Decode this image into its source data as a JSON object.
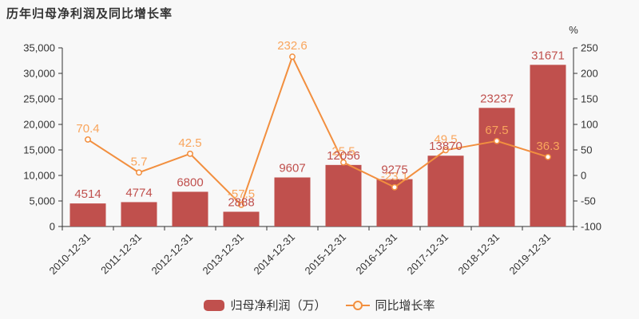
{
  "chart_data": {
    "type": "bar+line",
    "title": "历年归母净利润及同比增长率",
    "categories": [
      "2010-12-31",
      "2011-12-31",
      "2012-12-31",
      "2013-12-31",
      "2014-12-31",
      "2015-12-31",
      "2016-12-31",
      "2017-12-31",
      "2018-12-31",
      "2019-12-31"
    ],
    "series": [
      {
        "name": "归母净利润（万）",
        "type": "bar",
        "axis": "left",
        "color": "#c0504d",
        "label_color": "#c0504d",
        "values": [
          4514,
          4774,
          6800,
          2888,
          9607,
          12056,
          9275,
          13870,
          23237,
          31671
        ]
      },
      {
        "name": "同比增长率",
        "type": "line",
        "axis": "right",
        "color": "#f28f3f",
        "label_color": "#f9a55c",
        "marker_fill": "#ffffff",
        "values": [
          70.4,
          5.7,
          42.5,
          -57.5,
          232.6,
          25.5,
          -23.1,
          49.5,
          67.5,
          36.3
        ]
      }
    ],
    "left_axis": {
      "min": 0,
      "max": 35000,
      "ticks": [
        "0",
        "5,000",
        "10,000",
        "15,000",
        "20,000",
        "25,000",
        "30,000",
        "35,000"
      ]
    },
    "right_axis": {
      "unit": "%",
      "min": -100,
      "max": 250,
      "ticks": [
        "-100",
        "-50",
        "0",
        "50",
        "100",
        "150",
        "200",
        "250"
      ]
    },
    "legend_position": "bottom",
    "grid": false,
    "axis_color": "#333333",
    "background": "#f8f8f8"
  }
}
